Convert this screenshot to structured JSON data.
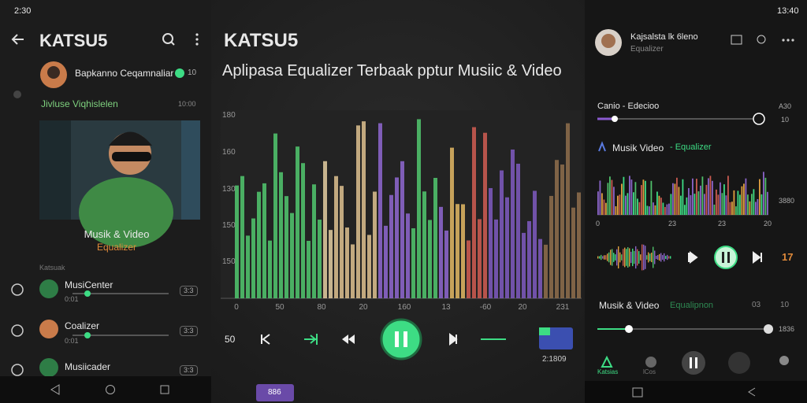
{
  "left_panel": {
    "status_time": "2:30",
    "title": "KATSU5",
    "profile": {
      "name": "Bapkanno Ceqamnaliar",
      "count": "10"
    },
    "video": {
      "heading": "Jivluse Viqhislelen",
      "duration": "10:00",
      "title": "Musik & Video",
      "subtitle": "Equalizer"
    },
    "section_label": "Katsuak",
    "list": [
      {
        "title": "MusiCenter",
        "time": "0:01",
        "badge": "3:3"
      },
      {
        "title": "Coalizer",
        "time": "0:01",
        "badge": "3:3"
      },
      {
        "title": "Musiicader",
        "badge": "3:3"
      }
    ]
  },
  "center_panel": {
    "title": "KATSU5",
    "subtitle": "Aplipasa Equalizer Terbaak pptur Musiic & Video",
    "y_labels": [
      "180",
      "160",
      "130",
      "150",
      "150"
    ],
    "x_labels": [
      "0",
      "50",
      "80",
      "20",
      "160",
      "13",
      "-60",
      "20",
      "231"
    ],
    "left_control": "50",
    "counter": "2:1809",
    "bottom_button": "886"
  },
  "right_panel": {
    "status_time": "13:40",
    "profile": {
      "name": "Kajsalsta lk 6leno",
      "subtitle": "Equalizer"
    },
    "track": {
      "title": "Canio - Edecioo",
      "value": "A30",
      "sub_value": "10"
    },
    "spectrum": {
      "title": "Musik Video",
      "subtitle": "- Equalizer",
      "x_labels": [
        "0",
        "23",
        "23",
        "20"
      ],
      "side_label": "3880"
    },
    "side_number": "17",
    "bottom_track": {
      "title": "Musik & Video",
      "subtitle": "Equalipnon",
      "time": "03",
      "total": "10",
      "level": "1836"
    },
    "nav": [
      "Katsias",
      "lCos"
    ]
  }
}
